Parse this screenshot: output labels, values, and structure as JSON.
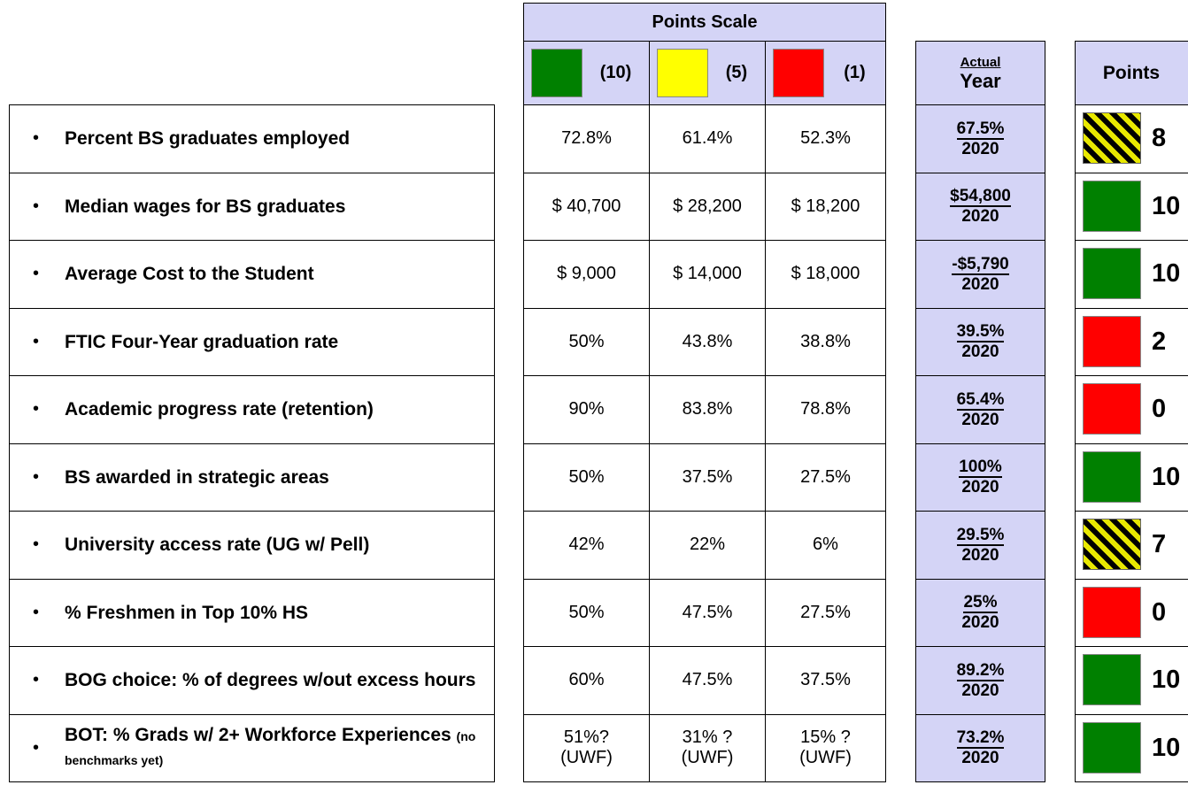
{
  "header": {
    "points_scale_title": "Points Scale",
    "scale": [
      {
        "label": "(10)",
        "color": "#008000"
      },
      {
        "label": "(5)",
        "color": "#ffff00"
      },
      {
        "label": "(1)",
        "color": "#ff0000"
      }
    ],
    "actual_label": "Actual",
    "year_label": "Year",
    "points_label": "Points"
  },
  "rows": [
    {
      "metric": "Percent BS graduates employed",
      "benchmarks": [
        "72.8%",
        "61.4%",
        "52.3%"
      ],
      "actual": "67.5%",
      "year": "2020",
      "points": "8",
      "swatch": "stripe"
    },
    {
      "metric": "Median wages for BS graduates",
      "benchmarks": [
        "$ 40,700",
        "$ 28,200",
        "$ 18,200"
      ],
      "actual": "$54,800",
      "year": "2020",
      "points": "10",
      "swatch": "#008000"
    },
    {
      "metric": "Average Cost to the Student",
      "benchmarks": [
        "$ 9,000",
        "$ 14,000",
        "$ 18,000"
      ],
      "actual": "-$5,790",
      "year": "2020",
      "points": "10",
      "swatch": "#008000"
    },
    {
      "metric": "FTIC Four-Year graduation rate",
      "benchmarks": [
        "50%",
        "43.8%",
        "38.8%"
      ],
      "actual": "39.5%",
      "year": "2020",
      "points": "2",
      "swatch": "#ff0000"
    },
    {
      "metric": "Academic progress rate (retention)",
      "benchmarks": [
        "90%",
        "83.8%",
        "78.8%"
      ],
      "actual": "65.4%",
      "year": "2020",
      "points": "0",
      "swatch": "#ff0000"
    },
    {
      "metric": "BS awarded in strategic areas",
      "benchmarks": [
        "50%",
        "37.5%",
        "27.5%"
      ],
      "actual": "100%",
      "year": "2020",
      "points": "10",
      "swatch": "#008000"
    },
    {
      "metric": "University access rate (UG w/ Pell)",
      "benchmarks": [
        "42%",
        "22%",
        "6%"
      ],
      "actual": "29.5%",
      "year": "2020",
      "points": "7",
      "swatch": "stripe"
    },
    {
      "metric": "% Freshmen in Top 10% HS",
      "benchmarks": [
        "50%",
        "47.5%",
        "27.5%"
      ],
      "actual": "25%",
      "year": "2020",
      "points": "0",
      "swatch": "#ff0000"
    },
    {
      "metric": "BOG choice: % of degrees w/out excess hours",
      "benchmarks": [
        "60%",
        "47.5%",
        "37.5%"
      ],
      "actual": "89.2%",
      "year": "2020",
      "points": "10",
      "swatch": "#008000"
    },
    {
      "metric": "BOT: % Grads w/ 2+ Workforce Experiences",
      "note": "(no benchmarks yet)",
      "benchmarks": [
        "51%?\n(UWF)",
        "31% ?\n(UWF)",
        "15% ?\n(UWF)"
      ],
      "actual": "73.2%",
      "year": "2020",
      "points": "10",
      "swatch": "#008000"
    }
  ]
}
